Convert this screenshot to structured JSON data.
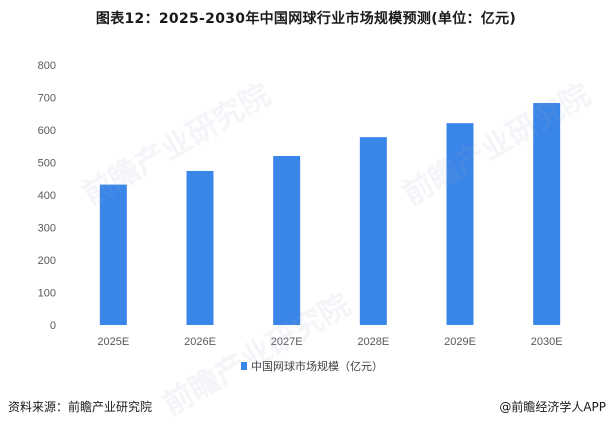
{
  "chart_data": {
    "type": "bar",
    "title": "图表12：2025-2030年中国网球行业市场规模预测(单位：亿元)",
    "categories": [
      "2025E",
      "2026E",
      "2027E",
      "2028E",
      "2029E",
      "2030E"
    ],
    "series": [
      {
        "name": "中国网球市场规模（亿元）",
        "values": [
          432,
          474,
          520,
          578,
          621,
          683
        ]
      }
    ],
    "ylim": [
      0,
      800
    ],
    "yticks": [
      0,
      100,
      200,
      300,
      400,
      500,
      600,
      700,
      800
    ],
    "grid": false,
    "legend": "bottom",
    "colors": {
      "bar": "#3a85e8"
    }
  },
  "footer": {
    "source": "资料来源：前瞻产业研究院",
    "credit": "@前瞻经济学人APP"
  }
}
